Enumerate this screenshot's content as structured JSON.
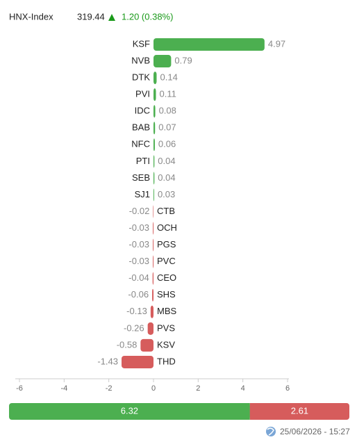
{
  "header": {
    "index_name": "HNX-Index",
    "index_value": "319.44",
    "change": "1.20 (0.38%)"
  },
  "chart_data": {
    "type": "hbar",
    "categories": [
      "KSF",
      "NVB",
      "DTK",
      "PVI",
      "IDC",
      "BAB",
      "NFC",
      "PTI",
      "SEB",
      "SJ1",
      "CTB",
      "OCH",
      "PGS",
      "PVC",
      "CEO",
      "SHS",
      "MBS",
      "PVS",
      "KSV",
      "THD"
    ],
    "values": [
      4.97,
      0.79,
      0.14,
      0.11,
      0.08,
      0.07,
      0.06,
      0.04,
      0.04,
      0.03,
      -0.02,
      -0.03,
      -0.03,
      -0.03,
      -0.04,
      -0.06,
      -0.13,
      -0.26,
      -0.58,
      -1.43
    ],
    "color": "#4caf50",
    "negative_color": "#d65c5c",
    "xlim": [
      -6,
      6
    ],
    "xticks": [
      -6,
      -4,
      -2,
      0,
      2,
      4,
      6
    ]
  },
  "summary": {
    "up": 6.32,
    "down": 2.61,
    "up_color": "#4caf50",
    "down_color": "#d65c5c"
  },
  "footer": {
    "timestamp": "25/06/2026 - 15:27"
  }
}
